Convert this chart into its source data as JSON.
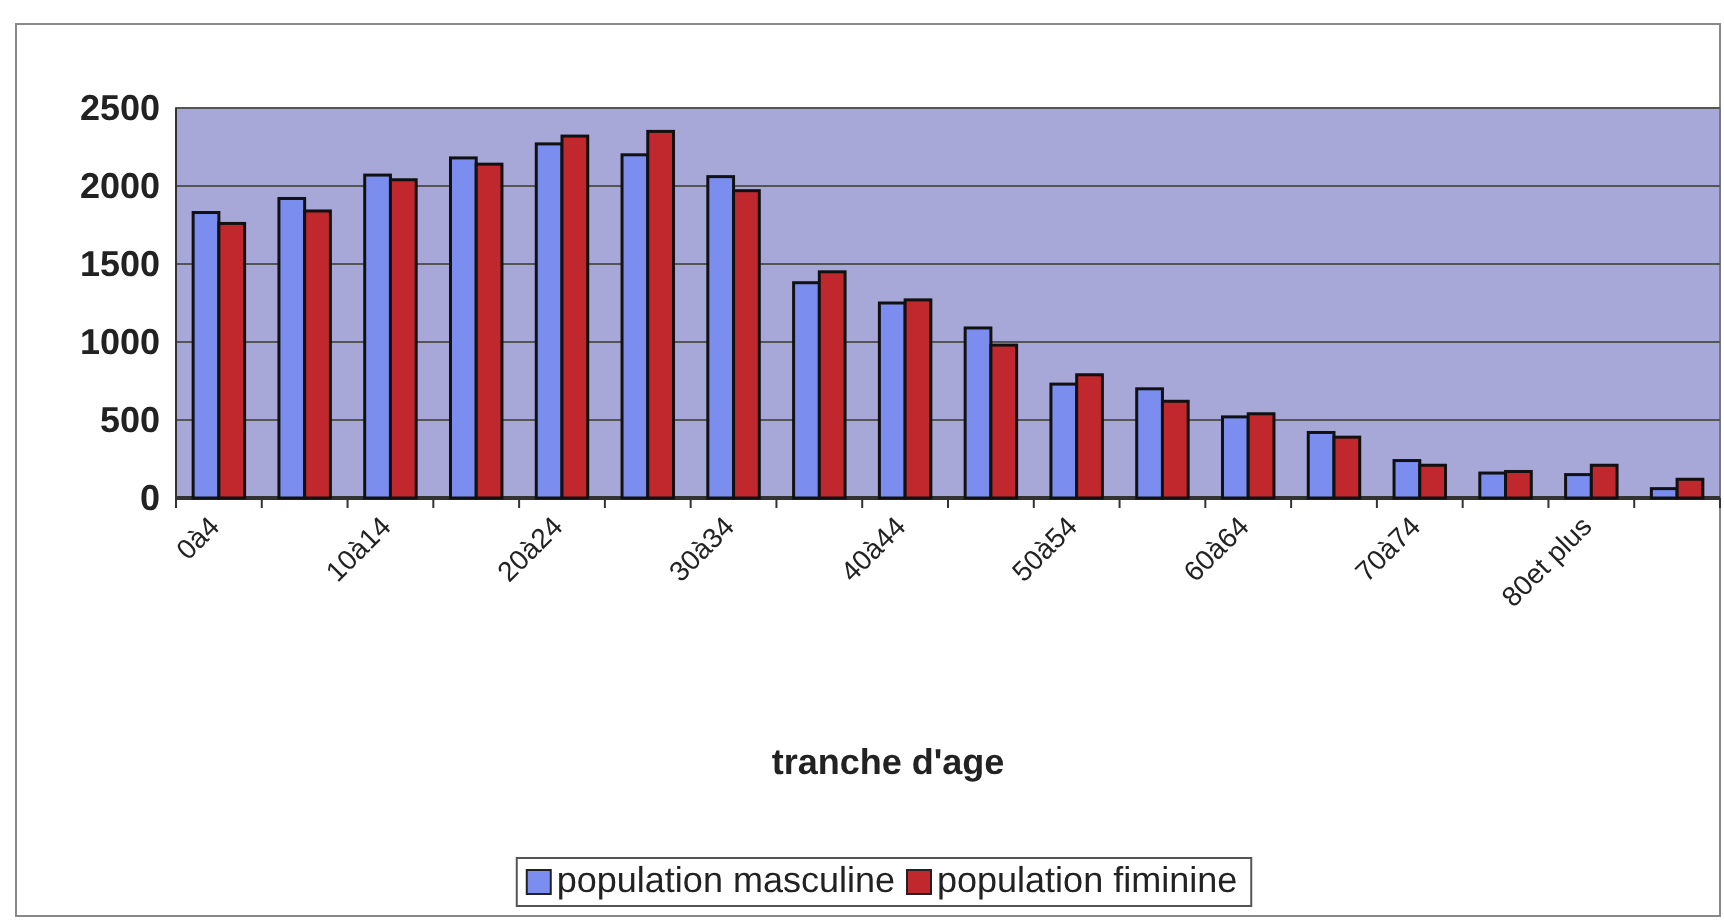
{
  "chart_data": {
    "type": "bar",
    "xlabel": "tranche d'age",
    "categories": [
      "0à4",
      null,
      "10à14",
      null,
      "20à24",
      null,
      "30à34",
      null,
      "40à44",
      null,
      "50à54",
      null,
      "60à64",
      null,
      "70à74",
      null,
      "80et plus",
      null
    ],
    "series": [
      {
        "name": "population masculine",
        "color": "#7b8ef0",
        "values": [
          1830,
          1920,
          2070,
          2180,
          2270,
          2200,
          2060,
          1380,
          1250,
          1090,
          730,
          700,
          520,
          420,
          240,
          160,
          150,
          60
        ]
      },
      {
        "name": "population fiminine",
        "color": "#c0282e",
        "values": [
          1760,
          1840,
          2040,
          2140,
          2320,
          2350,
          1970,
          1450,
          1270,
          980,
          790,
          620,
          540,
          390,
          210,
          170,
          210,
          120
        ]
      }
    ],
    "ylim": [
      0,
      2500
    ],
    "yticks": [
      0,
      500,
      1000,
      1500,
      2000,
      2500
    ],
    "grid": "y",
    "legend": "bottom"
  }
}
